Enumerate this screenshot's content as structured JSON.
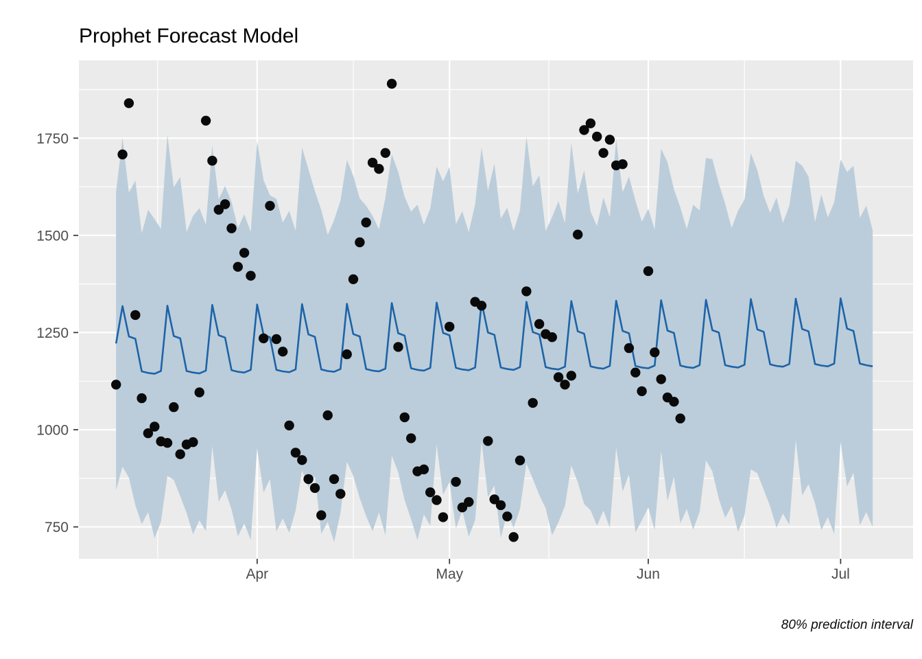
{
  "chart_data": {
    "type": "line",
    "title": "Prophet Forecast Model",
    "caption": "80% prediction interval",
    "xlabel": "",
    "ylabel": "",
    "grid": "on",
    "legend_position": "none",
    "x_unit": "day index, t=0 corresponds to Mar 10",
    "x_domain": [
      -5.8,
      124.3
    ],
    "y_domain": [
      668,
      1950
    ],
    "x_ticks": [
      {
        "t": 22,
        "label": "Apr"
      },
      {
        "t": 52,
        "label": "May"
      },
      {
        "t": 83,
        "label": "Jun"
      },
      {
        "t": 113,
        "label": "Jul"
      }
    ],
    "x_minor_ticks": [
      6.5,
      37,
      67.5,
      98
    ],
    "y_ticks": [
      750,
      1000,
      1250,
      1500,
      1750
    ],
    "y_minor_ticks": [
      875,
      1125,
      1375,
      1625,
      1875
    ],
    "series": [
      {
        "name": "forecast",
        "role": "line",
        "start_t": 0,
        "step": 1,
        "values": [
          1222,
          1318,
          1240,
          1234,
          1150,
          1146,
          1144,
          1151,
          1319,
          1241,
          1235,
          1151,
          1147,
          1145,
          1152,
          1321,
          1243,
          1237,
          1153,
          1149,
          1147,
          1154,
          1322,
          1244,
          1238,
          1154,
          1150,
          1148,
          1155,
          1323,
          1245,
          1239,
          1155,
          1151,
          1149,
          1156,
          1324,
          1246,
          1240,
          1156,
          1152,
          1150,
          1157,
          1326,
          1248,
          1242,
          1158,
          1154,
          1152,
          1159,
          1327,
          1249,
          1243,
          1159,
          1155,
          1153,
          1160,
          1328,
          1250,
          1244,
          1160,
          1156,
          1154,
          1161,
          1329,
          1251,
          1245,
          1161,
          1157,
          1155,
          1162,
          1331,
          1253,
          1247,
          1163,
          1159,
          1157,
          1164,
          1332,
          1254,
          1248,
          1164,
          1160,
          1158,
          1165,
          1333,
          1255,
          1249,
          1165,
          1161,
          1159,
          1166,
          1334,
          1256,
          1250,
          1166,
          1162,
          1160,
          1167,
          1336,
          1258,
          1252,
          1168,
          1164,
          1162,
          1169,
          1337,
          1259,
          1253,
          1169,
          1165,
          1163,
          1170,
          1338,
          1260,
          1254,
          1170,
          1166,
          1163
        ]
      },
      {
        "name": "interval_upper",
        "role": "ribbon-upper",
        "start_t": 0,
        "step": 1,
        "values": [
          1612,
          1751,
          1610,
          1641,
          1505,
          1566,
          1542,
          1516,
          1759,
          1624,
          1650,
          1508,
          1550,
          1570,
          1527,
          1731,
          1593,
          1627,
          1586,
          1519,
          1554,
          1509,
          1742,
          1642,
          1603,
          1594,
          1533,
          1563,
          1512,
          1726,
          1670,
          1614,
          1565,
          1501,
          1539,
          1589,
          1694,
          1653,
          1595,
          1576,
          1550,
          1515,
          1597,
          1709,
          1663,
          1599,
          1561,
          1579,
          1527,
          1569,
          1677,
          1639,
          1676,
          1529,
          1562,
          1508,
          1580,
          1726,
          1615,
          1684,
          1543,
          1571,
          1511,
          1564,
          1754,
          1626,
          1655,
          1511,
          1547,
          1588,
          1532,
          1738,
          1608,
          1667,
          1561,
          1524,
          1597,
          1547,
          1747,
          1611,
          1651,
          1589,
          1535,
          1568,
          1515,
          1723,
          1688,
          1619,
          1572,
          1516,
          1579,
          1564,
          1699,
          1696,
          1633,
          1581,
          1519,
          1563,
          1592,
          1711,
          1668,
          1602,
          1558,
          1597,
          1532,
          1576,
          1692,
          1679,
          1651,
          1534,
          1605,
          1546,
          1585,
          1695,
          1663,
          1679,
          1545,
          1576,
          1513
        ]
      },
      {
        "name": "interval_lower",
        "role": "ribbon-lower",
        "start_t": 0,
        "step": 1,
        "values": [
          844,
          905,
          877,
          806,
          757,
          788,
          721,
          763,
          881,
          871,
          829,
          786,
          731,
          767,
          739,
          958,
          815,
          844,
          795,
          726,
          759,
          716,
          952,
          838,
          873,
          738,
          772,
          735,
          792,
          895,
          852,
          881,
          732,
          763,
          711,
          786,
          918,
          881,
          824,
          778,
          739,
          787,
          729,
          933,
          890,
          819,
          770,
          716,
          782,
          753,
          962,
          833,
          865,
          746,
          792,
          725,
          767,
          970,
          827,
          856,
          722,
          786,
          748,
          796,
          913,
          873,
          832,
          798,
          729,
          762,
          804,
          908,
          865,
          809,
          793,
          753,
          792,
          748,
          954,
          841,
          885,
          736,
          767,
          800,
          742,
          945,
          817,
          879,
          759,
          796,
          743,
          788,
          921,
          893,
          822,
          773,
          804,
          737,
          779,
          898,
          888,
          846,
          803,
          748,
          784,
          756,
          974,
          831,
          860,
          811,
          742,
          775,
          732,
          968,
          854,
          889,
          754,
          788,
          750
        ]
      },
      {
        "name": "actuals",
        "role": "points",
        "points": [
          {
            "d": "Mar 10",
            "t": 0,
            "y": 1116
          },
          {
            "d": "Mar 11",
            "t": 1,
            "y": 1708
          },
          {
            "d": "Mar 12",
            "t": 2,
            "y": 1840
          },
          {
            "d": "Mar 13",
            "t": 3,
            "y": 1295
          },
          {
            "d": "Mar 14",
            "t": 4,
            "y": 1081
          },
          {
            "d": "Mar 15",
            "t": 5,
            "y": 991
          },
          {
            "d": "Mar 16",
            "t": 6,
            "y": 1008
          },
          {
            "d": "Mar 17",
            "t": 7,
            "y": 970
          },
          {
            "d": "Mar 18",
            "t": 8,
            "y": 966
          },
          {
            "d": "Mar 19",
            "t": 9,
            "y": 1058
          },
          {
            "d": "Mar 20",
            "t": 10,
            "y": 937
          },
          {
            "d": "Mar 21",
            "t": 11,
            "y": 962
          },
          {
            "d": "Mar 22",
            "t": 12,
            "y": 968
          },
          {
            "d": "Mar 23",
            "t": 13,
            "y": 1096
          },
          {
            "d": "Mar 24",
            "t": 14,
            "y": 1795
          },
          {
            "d": "Mar 25",
            "t": 15,
            "y": 1692
          },
          {
            "d": "Mar 26",
            "t": 16,
            "y": 1566
          },
          {
            "d": "Mar 27",
            "t": 17,
            "y": 1580
          },
          {
            "d": "Mar 28",
            "t": 18,
            "y": 1518
          },
          {
            "d": "Mar 29",
            "t": 19,
            "y": 1419
          },
          {
            "d": "Mar 30",
            "t": 20,
            "y": 1455
          },
          {
            "d": "Mar 31",
            "t": 21,
            "y": 1396
          },
          {
            "d": "Apr 2",
            "t": 23,
            "y": 1235
          },
          {
            "d": "Apr 3",
            "t": 24,
            "y": 1576
          },
          {
            "d": "Apr 4",
            "t": 25,
            "y": 1233
          },
          {
            "d": "Apr 5",
            "t": 26,
            "y": 1201
          },
          {
            "d": "Apr 6",
            "t": 27,
            "y": 1011
          },
          {
            "d": "Apr 7",
            "t": 28,
            "y": 941
          },
          {
            "d": "Apr 8",
            "t": 29,
            "y": 922
          },
          {
            "d": "Apr 9",
            "t": 30,
            "y": 873
          },
          {
            "d": "Apr 10",
            "t": 31,
            "y": 850
          },
          {
            "d": "Apr 11",
            "t": 32,
            "y": 780
          },
          {
            "d": "Apr 12",
            "t": 33,
            "y": 1037
          },
          {
            "d": "Apr 13",
            "t": 34,
            "y": 873
          },
          {
            "d": "Apr 14",
            "t": 35,
            "y": 835
          },
          {
            "d": "Apr 15",
            "t": 36,
            "y": 1194
          },
          {
            "d": "Apr 16",
            "t": 37,
            "y": 1387
          },
          {
            "d": "Apr 17",
            "t": 38,
            "y": 1482
          },
          {
            "d": "Apr 18",
            "t": 39,
            "y": 1533
          },
          {
            "d": "Apr 19",
            "t": 40,
            "y": 1687
          },
          {
            "d": "Apr 20",
            "t": 41,
            "y": 1671
          },
          {
            "d": "Apr 21",
            "t": 42,
            "y": 1712
          },
          {
            "d": "Apr 22",
            "t": 43,
            "y": 1890
          },
          {
            "d": "Apr 23",
            "t": 44,
            "y": 1213
          },
          {
            "d": "Apr 24",
            "t": 45,
            "y": 1032
          },
          {
            "d": "Apr 25",
            "t": 46,
            "y": 978
          },
          {
            "d": "Apr 26",
            "t": 47,
            "y": 893
          },
          {
            "d": "Apr 27",
            "t": 48,
            "y": 898
          },
          {
            "d": "Apr 28",
            "t": 49,
            "y": 839
          },
          {
            "d": "Apr 29",
            "t": 50,
            "y": 819
          },
          {
            "d": "Apr 30",
            "t": 51,
            "y": 775
          },
          {
            "d": "May 1",
            "t": 52,
            "y": 1265
          },
          {
            "d": "May 2",
            "t": 53,
            "y": 866
          },
          {
            "d": "May 3",
            "t": 54,
            "y": 800
          },
          {
            "d": "May 4",
            "t": 55,
            "y": 814
          },
          {
            "d": "May 5",
            "t": 56,
            "y": 1329
          },
          {
            "d": "May 6",
            "t": 57,
            "y": 1319
          },
          {
            "d": "May 7",
            "t": 58,
            "y": 971
          },
          {
            "d": "May 8",
            "t": 59,
            "y": 821
          },
          {
            "d": "May 9",
            "t": 60,
            "y": 806
          },
          {
            "d": "May 10",
            "t": 61,
            "y": 777
          },
          {
            "d": "May 11",
            "t": 62,
            "y": 724
          },
          {
            "d": "May 12",
            "t": 63,
            "y": 921
          },
          {
            "d": "May 13",
            "t": 64,
            "y": 1356
          },
          {
            "d": "May 14",
            "t": 65,
            "y": 1069
          },
          {
            "d": "May 15",
            "t": 66,
            "y": 1272
          },
          {
            "d": "May 16",
            "t": 67,
            "y": 1246
          },
          {
            "d": "May 17",
            "t": 68,
            "y": 1238
          },
          {
            "d": "May 18",
            "t": 69,
            "y": 1135
          },
          {
            "d": "May 19",
            "t": 70,
            "y": 1116
          },
          {
            "d": "May 20",
            "t": 71,
            "y": 1139
          },
          {
            "d": "May 21",
            "t": 72,
            "y": 1502
          },
          {
            "d": "May 22",
            "t": 73,
            "y": 1771
          },
          {
            "d": "May 23",
            "t": 74,
            "y": 1788
          },
          {
            "d": "May 24",
            "t": 75,
            "y": 1754
          },
          {
            "d": "May 25",
            "t": 76,
            "y": 1712
          },
          {
            "d": "May 26",
            "t": 77,
            "y": 1746
          },
          {
            "d": "May 27",
            "t": 78,
            "y": 1680
          },
          {
            "d": "May 28",
            "t": 79,
            "y": 1683
          },
          {
            "d": "May 29",
            "t": 80,
            "y": 1210
          },
          {
            "d": "May 30",
            "t": 81,
            "y": 1147
          },
          {
            "d": "May 31",
            "t": 82,
            "y": 1099
          },
          {
            "d": "Jun 1",
            "t": 83,
            "y": 1408
          },
          {
            "d": "Jun 2",
            "t": 84,
            "y": 1199
          },
          {
            "d": "Jun 3",
            "t": 85,
            "y": 1130
          },
          {
            "d": "Jun 4",
            "t": 86,
            "y": 1083
          },
          {
            "d": "Jun 5",
            "t": 87,
            "y": 1072
          },
          {
            "d": "Jun 6",
            "t": 88,
            "y": 1029
          }
        ]
      }
    ],
    "colors": {
      "panel_background": "#EBEBEB",
      "gridline": "#FFFFFF",
      "ribbon_fill": "#BBCDDA",
      "forecast_line": "#1D63A8",
      "point_fill": "#0A0A0A",
      "axis_text": "#4D4D4D",
      "tick_mark": "#333333",
      "title_text": "#000000"
    }
  }
}
